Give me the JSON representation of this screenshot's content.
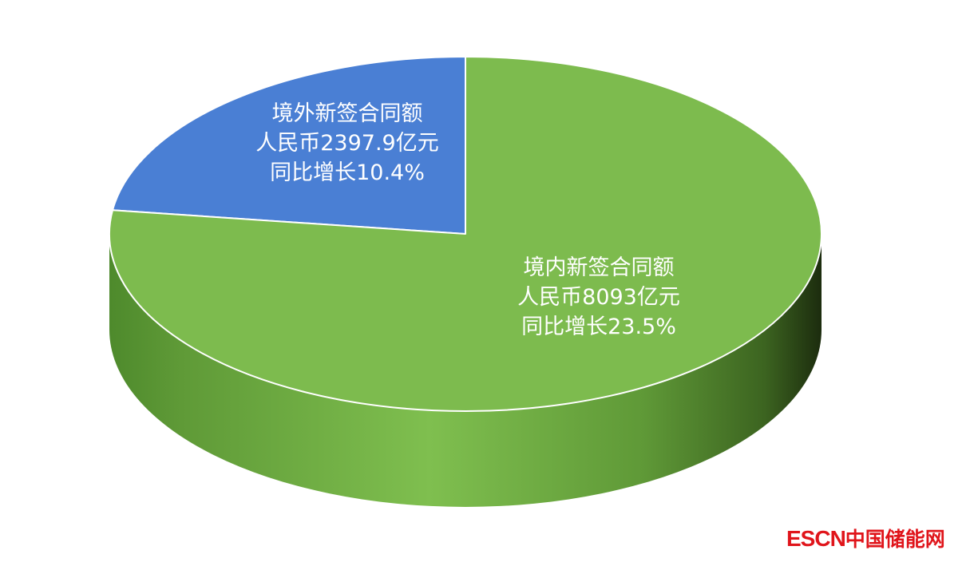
{
  "chart_data": {
    "type": "pie",
    "style": "3d",
    "slices": [
      {
        "label_lines": [
          "境外新签合同额",
          "人民币2397.9亿元",
          "同比增长10.4%"
        ],
        "value": 2397.9,
        "color": "#4a7fd4"
      },
      {
        "label_lines": [
          "境内新签合同额",
          "人民币8093亿元",
          "同比增长23.5%"
        ],
        "value": 8093,
        "color": "#7dbb4e"
      }
    ],
    "legend": "none"
  },
  "watermark": {
    "latin": "ESCN",
    "cn": "中国储能网",
    "color": "#e0151b"
  }
}
